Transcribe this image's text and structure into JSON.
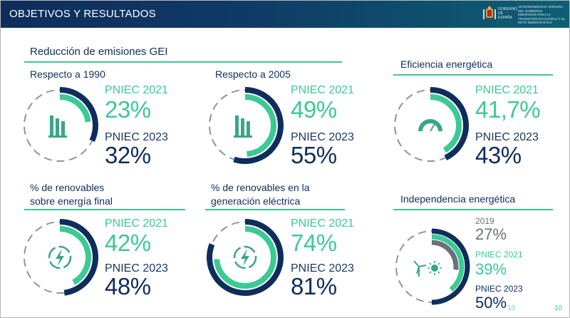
{
  "header": {
    "title": "OBJETIVOS Y RESULTADOS",
    "gov_text": "VICEPRESIDENCIA TERCERA DEL GOBIERNO",
    "crest_text": "GOBIERNO DE ESPAÑA",
    "ministry_text": "MINISTERIO PARA LA TRANSICIÓN ECOLÓGICA Y EL RETO DEMOGRÁFICO"
  },
  "section_emissions": {
    "title": "Reducción de emisiones GEI"
  },
  "card_1990": {
    "title": "Respecto a 1990",
    "label_2021": "PNIEC 2021",
    "value_2021": "23%",
    "label_2023": "PNIEC 2023",
    "value_2023": "32%",
    "fill_2021": 0.23,
    "fill_2023": 0.32
  },
  "card_2005": {
    "title": "Respecto a 2005",
    "label_2021": "PNIEC 2021",
    "value_2021": "49%",
    "label_2023": "PNIEC 2023",
    "value_2023": "55%",
    "fill_2021": 0.49,
    "fill_2023": 0.55
  },
  "card_efficiency": {
    "title": "Eficiencia energética",
    "label_2021": "PNIEC 2021",
    "value_2021": "41,7%",
    "label_2023": "PNIEC 2023",
    "value_2023": "43%",
    "fill_2021": 0.417,
    "fill_2023": 0.43
  },
  "card_renewables_final": {
    "title_line1": "% de renovables",
    "title_line2": "sobre energía final",
    "label_2021": "PNIEC 2021",
    "value_2021": "42%",
    "label_2023": "PNIEC 2023",
    "value_2023": "48%",
    "fill_2021": 0.42,
    "fill_2023": 0.48
  },
  "card_renewables_electric": {
    "title_line1": "% de renovables en la",
    "title_line2": "generación eléctrica",
    "label_2021": "PNIEC 2021",
    "value_2021": "74%",
    "label_2023": "PNIEC 2023",
    "value_2023": "81%",
    "fill_2021": 0.74,
    "fill_2023": 0.81
  },
  "card_independence": {
    "title": "Independencia energética",
    "label_2019": "2019",
    "value_2019": "27%",
    "label_2021": "PNIEC 2021",
    "value_2021": "39%",
    "label_2023": "PNIEC 2023",
    "value_2023": "50%",
    "fill_2019": 0.27,
    "fill_2021": 0.39,
    "fill_2023": 0.5
  },
  "footer": {
    "page_number": "10",
    "ghost_number": "10"
  },
  "colors": {
    "navy": "#0f2d5c",
    "green": "#3cc994",
    "grey": "#6b7078",
    "dash": "#8f949b"
  },
  "icons": {
    "emissions": "factory-chimneys-icon",
    "efficiency": "gauge-icon",
    "renewables": "lightning-bolt-icon",
    "independence": "wind-solar-icon"
  }
}
